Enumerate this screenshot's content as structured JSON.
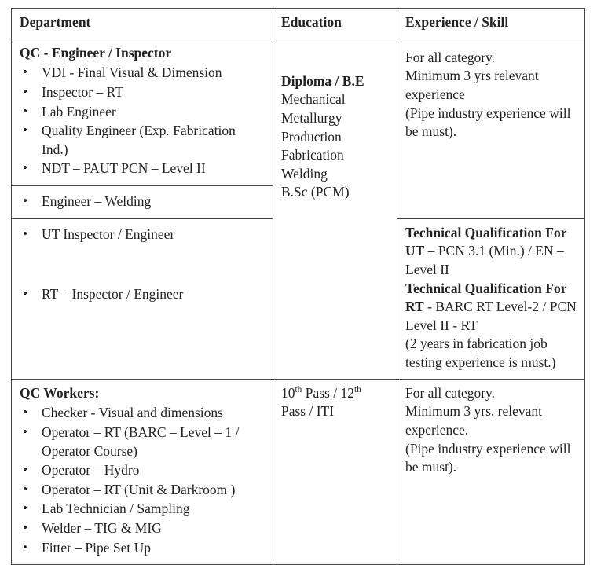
{
  "header": {
    "col1": "Department",
    "col2": "Education",
    "col3": "Experience / Skill"
  },
  "group1": {
    "heading": "QC - Engineer  / Inspector",
    "roles": [
      "VDI - Final Visual & Dimension",
      "Inspector – RT",
      "Lab Engineer",
      "Quality Engineer (Exp. Fabrication Ind.)",
      "NDT – PAUT PCN – Level II"
    ],
    "sub1": "Engineer – Welding",
    "sub2a": "UT Inspector / Engineer",
    "sub2b": "RT – Inspector / Engineer",
    "education_bold": "Diploma / B.E",
    "education_lines": [
      "Mechanical",
      "Metallurgy",
      "Production",
      "Fabrication",
      "Welding",
      "B.Sc (PCM)"
    ],
    "exp1": {
      "l1": "For all category.",
      "l2": "Minimum 3 yrs relevant experience",
      "l3": "(Pipe industry experience will be  must)."
    },
    "exp2": {
      "h1": "Technical Qualification For UT",
      "t1": " – PCN 3.1 (Min.) / EN – Level II",
      "h2": "Technical Qualification For RT",
      "t2": " - BARC RT  Level-2 / PCN Level II  - RT",
      "t3": "(2 years in fabrication job testing experience is must.)"
    }
  },
  "group2": {
    "heading": "QC Workers:",
    "roles": [
      "Checker  - Visual and dimensions",
      "Operator – RT (BARC – Level – 1 / Operator Course)",
      "Operator – Hydro",
      "Operator – RT (Unit  & Darkroom )",
      "Lab Technician / Sampling",
      "Welder – TIG & MIG",
      "Fitter – Pipe Set Up"
    ],
    "education_html": "10<sup>th</sup> Pass / 12<sup>th</sup> Pass / ITI",
    "exp": {
      "l1": "For all category.",
      "l2": "Minimum 3 yrs. relevant experience.",
      "l3": " (Pipe industry experience will be  must)."
    }
  }
}
